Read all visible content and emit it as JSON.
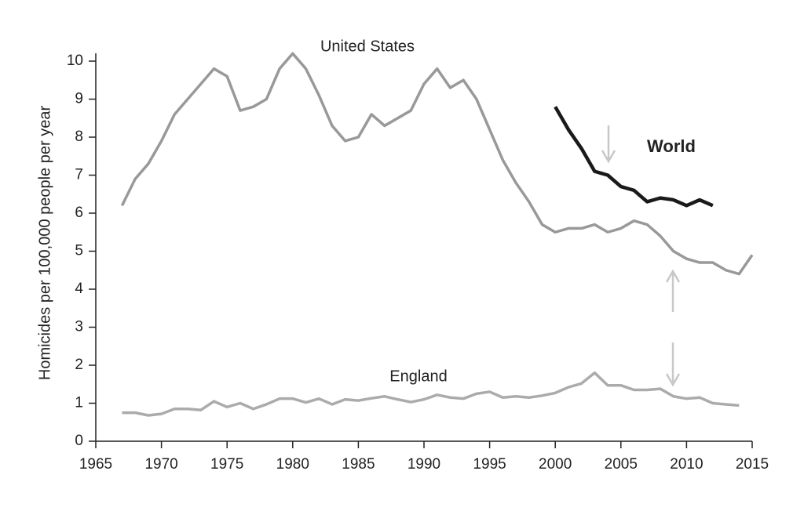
{
  "chart_data": {
    "type": "line",
    "ylabel": "Homicides per 100,000 people per year",
    "xlim": [
      1965,
      2015
    ],
    "xticks": [
      1965,
      1970,
      1975,
      1980,
      1985,
      1990,
      1995,
      2000,
      2005,
      2010,
      2015
    ],
    "ylim": [
      0,
      10
    ],
    "yticks": [
      0,
      1,
      2,
      3,
      4,
      5,
      6,
      7,
      8,
      9,
      10
    ],
    "series": [
      {
        "name": "United States",
        "color": "#999999",
        "x": [
          1967,
          1968,
          1969,
          1970,
          1971,
          1972,
          1973,
          1974,
          1975,
          1976,
          1977,
          1978,
          1979,
          1980,
          1981,
          1982,
          1983,
          1984,
          1985,
          1986,
          1987,
          1988,
          1989,
          1990,
          1991,
          1992,
          1993,
          1994,
          1995,
          1996,
          1997,
          1998,
          1999,
          2000,
          2001,
          2002,
          2003,
          2004,
          2005,
          2006,
          2007,
          2008,
          2009,
          2010,
          2011,
          2012,
          2013,
          2014,
          2015
        ],
        "values": [
          6.2,
          6.9,
          7.3,
          7.9,
          8.6,
          9.0,
          9.4,
          9.8,
          9.6,
          8.7,
          8.8,
          9.0,
          9.8,
          10.2,
          9.8,
          9.1,
          8.3,
          7.9,
          8.0,
          8.6,
          8.3,
          8.5,
          8.7,
          9.4,
          9.8,
          9.3,
          9.5,
          9.0,
          8.2,
          7.4,
          6.8,
          6.3,
          5.7,
          5.5,
          5.6,
          5.6,
          5.7,
          5.5,
          5.6,
          5.8,
          5.7,
          5.4,
          5.0,
          4.8,
          4.7,
          4.7,
          4.5,
          4.4,
          4.9
        ]
      },
      {
        "name": "England",
        "color": "#ababab",
        "x": [
          1967,
          1968,
          1969,
          1970,
          1971,
          1972,
          1973,
          1974,
          1975,
          1976,
          1977,
          1978,
          1979,
          1980,
          1981,
          1982,
          1983,
          1984,
          1985,
          1986,
          1987,
          1988,
          1989,
          1990,
          1991,
          1992,
          1993,
          1994,
          1995,
          1996,
          1997,
          1998,
          1999,
          2000,
          2001,
          2002,
          2003,
          2004,
          2005,
          2006,
          2007,
          2008,
          2009,
          2010,
          2011,
          2012,
          2013,
          2014
        ],
        "values": [
          0.75,
          0.75,
          0.68,
          0.72,
          0.85,
          0.85,
          0.82,
          1.05,
          0.9,
          1.0,
          0.85,
          0.97,
          1.12,
          1.12,
          1.02,
          1.12,
          0.97,
          1.1,
          1.07,
          1.13,
          1.18,
          1.1,
          1.03,
          1.1,
          1.22,
          1.15,
          1.12,
          1.25,
          1.3,
          1.15,
          1.18,
          1.15,
          1.2,
          1.27,
          1.42,
          1.52,
          1.8,
          1.47,
          1.47,
          1.35,
          1.35,
          1.38,
          1.18,
          1.12,
          1.15,
          1.0,
          0.97,
          0.94
        ]
      },
      {
        "name": "World",
        "color": "#1a1a1a",
        "x": [
          2000,
          2001,
          2002,
          2003,
          2004,
          2005,
          2006,
          2007,
          2008,
          2009,
          2010,
          2011,
          2012
        ],
        "values": [
          8.8,
          8.2,
          7.7,
          7.1,
          7.0,
          6.7,
          6.6,
          6.3,
          6.4,
          6.35,
          6.2,
          6.35,
          6.2
        ]
      }
    ]
  }
}
